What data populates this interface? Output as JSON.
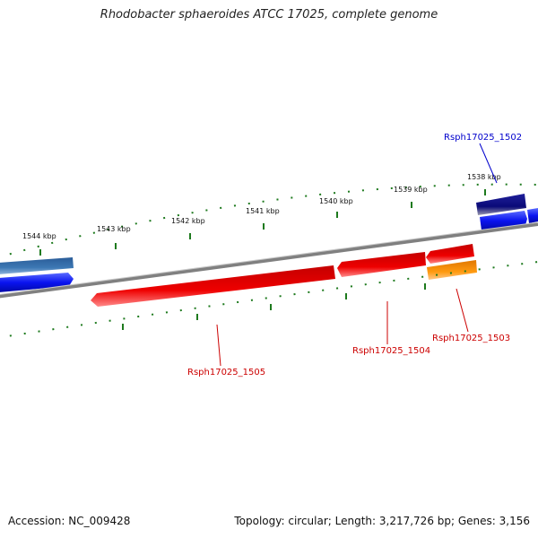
{
  "title": "Rhodobacter sphaeroides ATCC 17025, complete genome",
  "footer": {
    "accession": "Accession: NC_009428",
    "summary": "Topology: circular; Length: 3,217,726 bp; Genes: 3,156"
  },
  "ticks": [
    {
      "label": "1538 kbp",
      "kbp": 1538
    },
    {
      "label": "1539 kbp",
      "kbp": 1539
    },
    {
      "label": "1540 kbp",
      "kbp": 1540
    },
    {
      "label": "1541 kbp",
      "kbp": 1541
    },
    {
      "label": "1542 kbp",
      "kbp": 1542
    },
    {
      "label": "1543 kbp",
      "kbp": 1543
    },
    {
      "label": "1544 kbp",
      "kbp": 1544
    }
  ],
  "gene_labels": [
    {
      "id": "rsph1502",
      "text": "Rsph17025_1502",
      "color": "#0000cc"
    },
    {
      "id": "rsph1503",
      "text": "Rsph17025_1503",
      "color": "#cc0000"
    },
    {
      "id": "rsph1504",
      "text": "Rsph17025_1504",
      "color": "#cc0000"
    },
    {
      "id": "rsph1505",
      "text": "Rsph17025_1505",
      "color": "#cc0000"
    }
  ],
  "colors": {
    "backbone": "#808080",
    "tick": "#1e7a1e",
    "forward_gene": "#0a14f0",
    "forward_gene_dark": "#0a0a78",
    "forward_gene_steel": "#3c78b4",
    "reverse_gene": "#ee0000",
    "reverse_gene_orange": "#ff8c00"
  }
}
